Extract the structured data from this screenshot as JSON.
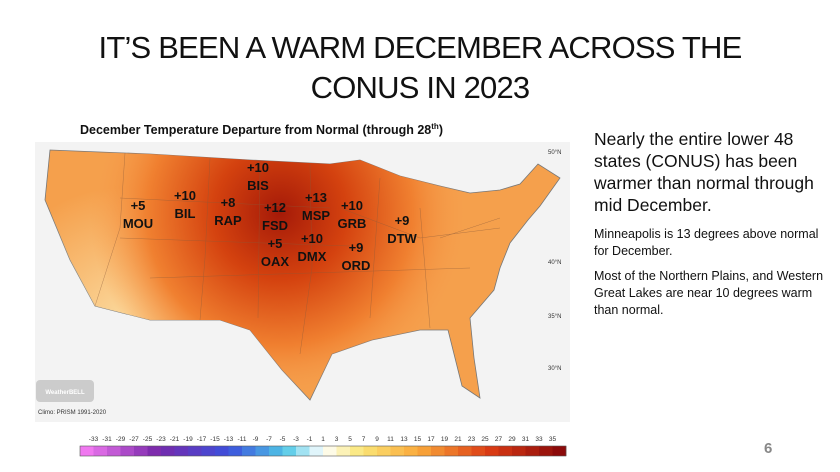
{
  "title": [
    "IT’S BEEN A WARM DECEMBER ACROSS THE",
    "CONUS IN 2023"
  ],
  "map": {
    "title": {
      "text": "December Temperature Departure from Normal (through 28",
      "sup": "th",
      "end": ")"
    },
    "stations": [
      {
        "value": "+10",
        "code": "BIS"
      },
      {
        "value": "+5",
        "code": "MOU"
      },
      {
        "value": "+10",
        "code": "BIL"
      },
      {
        "value": "+8",
        "code": "RAP"
      },
      {
        "value": "+12",
        "code": "FSD"
      },
      {
        "value": "+5",
        "code": "OAX"
      },
      {
        "value": "+13",
        "code": "MSP"
      },
      {
        "value": "+10",
        "code": "DMX"
      },
      {
        "value": "+10",
        "code": "GRB"
      },
      {
        "value": "+9",
        "code": "ORD"
      },
      {
        "value": "+9",
        "code": "DTW"
      }
    ],
    "latitudes": [
      "50°N",
      "40°N",
      "35°N",
      "30°N"
    ],
    "logo": "WeatherBELL",
    "source": "Climo: PRISM 1991-2020",
    "colorbar_ticks": [
      -33,
      -31,
      -29,
      -27,
      -25,
      -23,
      -21,
      -19,
      -17,
      -15,
      -13,
      -11,
      -9,
      -7,
      -5,
      -3,
      -1,
      1,
      3,
      5,
      7,
      9,
      11,
      13,
      15,
      17,
      19,
      21,
      23,
      25,
      27,
      29,
      31,
      33,
      35
    ]
  },
  "side_text": {
    "main": "Nearly the entire lower 48 states (CONUS) has been warmer than normal through mid December.",
    "notes": [
      "Minneapolis is 13 degrees above normal for  December.",
      "Most of the Northern Plains, and Western Great Lakes are near 10 degrees warm than normal."
    ]
  },
  "slide_number": "6"
}
